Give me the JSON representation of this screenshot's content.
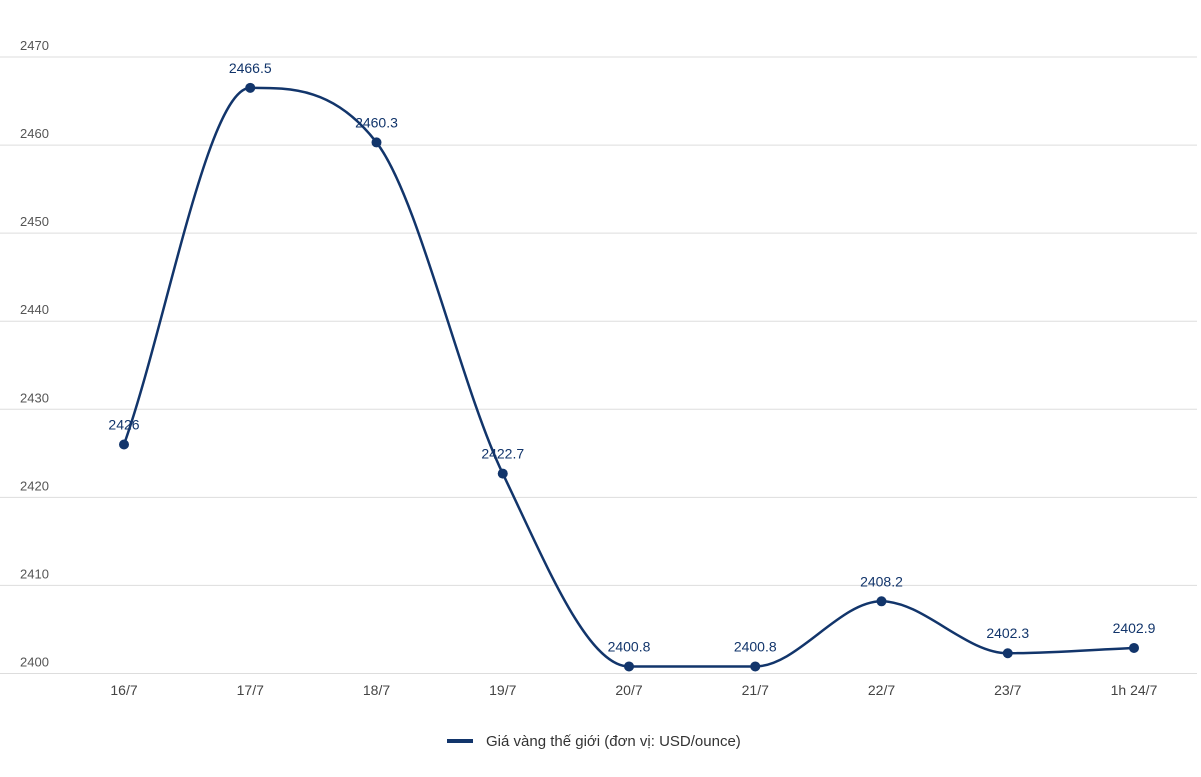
{
  "chart_data": {
    "type": "line",
    "categories": [
      "16/7",
      "17/7",
      "18/7",
      "19/7",
      "20/7",
      "21/7",
      "22/7",
      "23/7",
      "1h 24/7"
    ],
    "series": [
      {
        "name": "Giá vàng thế giới (đơn vị: USD/ounce)",
        "values": [
          2426,
          2466.5,
          2460.3,
          2422.7,
          2400.8,
          2400.8,
          2408.2,
          2402.3,
          2402.9
        ],
        "labels": [
          "2426",
          "2466.5",
          "2460.3",
          "2422.7",
          "2400.8",
          "2400.8",
          "2408.2",
          "2402.3",
          "2402.9"
        ],
        "color": "#12356b"
      }
    ],
    "yticks": [
      2400,
      2410,
      2420,
      2430,
      2440,
      2450,
      2460,
      2470
    ],
    "ylim": [
      2400,
      2470
    ],
    "grid": true,
    "smooth": true,
    "legend": "bottom-center",
    "title": "",
    "xlabel": "",
    "ylabel": ""
  }
}
